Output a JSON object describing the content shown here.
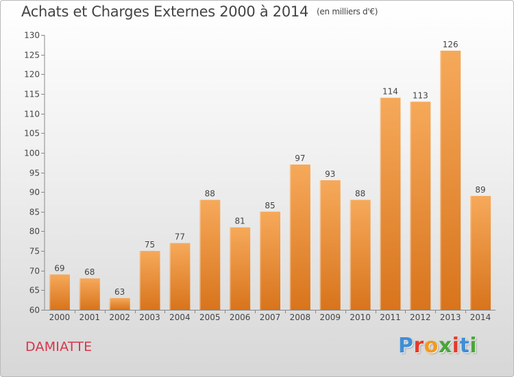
{
  "title": "Achats et Charges Externes 2000 à 2014",
  "unit_note": "(en milliers d'€)",
  "commune": "DAMIATTE",
  "brand": {
    "text": "Proxiti",
    "letter_colors": [
      "#3f8ed6",
      "#e23b2c",
      "#f29a1c",
      "#4aa63a",
      "#e23b2c",
      "#3f8ed6",
      "#4aa63a"
    ]
  },
  "colors": {
    "bar_top": "#f6a95a",
    "bar_bottom": "#d8741c",
    "text": "#444444",
    "accent": "#d8344a"
  },
  "chart_data": {
    "type": "bar",
    "title": "Achats et Charges Externes 2000 à 2014",
    "categories": [
      "2000",
      "2001",
      "2002",
      "2003",
      "2004",
      "2005",
      "2006",
      "2007",
      "2008",
      "2009",
      "2010",
      "2011",
      "2012",
      "2013",
      "2014"
    ],
    "values": [
      69,
      68,
      63,
      75,
      77,
      88,
      81,
      85,
      97,
      93,
      88,
      114,
      113,
      126,
      89
    ],
    "ylim": [
      60,
      130
    ],
    "yticks": [
      60,
      65,
      70,
      75,
      80,
      85,
      90,
      95,
      100,
      105,
      110,
      115,
      120,
      125,
      130
    ],
    "data_labels": true,
    "grid": false
  }
}
